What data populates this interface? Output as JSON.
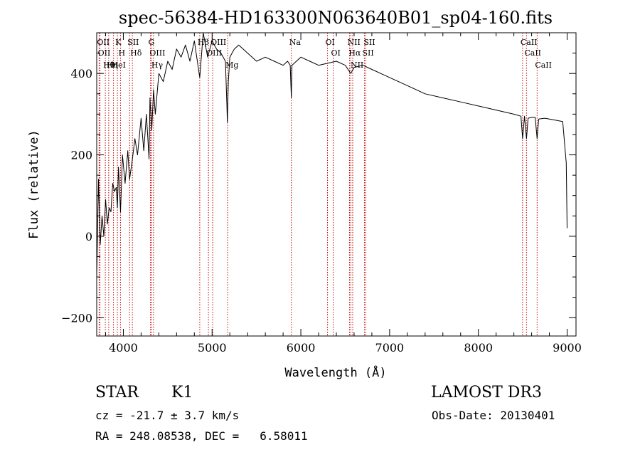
{
  "chart_data": {
    "type": "line",
    "title": "spec-56384-HD163300N063640B01_sp04-160.fits",
    "xlabel": "Wavelength (Å)",
    "ylabel": "Flux (relative)",
    "xlim": [
      3700,
      9100
    ],
    "ylim": [
      -245,
      500
    ],
    "xticks": [
      4000,
      5000,
      6000,
      7000,
      8000,
      9000
    ],
    "yticks": [
      -200,
      0,
      200,
      400
    ],
    "grid": false,
    "series": [
      {
        "name": "flux",
        "x": [
          3700,
          3720,
          3740,
          3760,
          3780,
          3800,
          3820,
          3840,
          3860,
          3880,
          3900,
          3920,
          3933,
          3945,
          3968,
          3990,
          4020,
          4050,
          4070,
          4102,
          4130,
          4160,
          4200,
          4230,
          4260,
          4290,
          4300,
          4320,
          4340,
          4360,
          4400,
          4450,
          4500,
          4550,
          4600,
          4650,
          4700,
          4750,
          4800,
          4861,
          4900,
          4950,
          5000,
          5050,
          5100,
          5150,
          5167,
          5172,
          5183,
          5200,
          5250,
          5300,
          5350,
          5400,
          5450,
          5500,
          5600,
          5700,
          5800,
          5850,
          5880,
          5893,
          5900,
          5950,
          6000,
          6100,
          6200,
          6300,
          6400,
          6500,
          6563,
          6600,
          6700,
          6800,
          6900,
          7000,
          7200,
          7400,
          7600,
          7800,
          8000,
          8200,
          8400,
          8480,
          8498,
          8520,
          8542,
          8560,
          8600,
          8640,
          8662,
          8680,
          8750,
          8850,
          8950,
          8990,
          9000
        ],
        "y": [
          -100,
          140,
          -20,
          50,
          0,
          90,
          30,
          70,
          60,
          130,
          110,
          120,
          70,
          170,
          60,
          200,
          130,
          210,
          140,
          190,
          240,
          200,
          290,
          210,
          300,
          190,
          340,
          260,
          360,
          300,
          400,
          380,
          430,
          410,
          460,
          440,
          470,
          430,
          480,
          390,
          500,
          440,
          480,
          460,
          450,
          430,
          320,
          280,
          380,
          440,
          460,
          470,
          460,
          450,
          440,
          430,
          440,
          430,
          420,
          430,
          420,
          340,
          420,
          430,
          440,
          430,
          420,
          425,
          430,
          420,
          400,
          415,
          420,
          410,
          400,
          390,
          370,
          350,
          340,
          330,
          320,
          310,
          300,
          295,
          240,
          295,
          240,
          290,
          292,
          292,
          240,
          288,
          290,
          286,
          282,
          180,
          20
        ]
      }
    ],
    "lines": [
      {
        "label": "Hθ",
        "x": 3797
      },
      {
        "label": "OII",
        "x": 3727
      },
      {
        "label": "OII",
        "x": 3737
      },
      {
        "label": "HeI",
        "x": 3889
      },
      {
        "label": "Hη",
        "x": 3835
      },
      {
        "label": "K",
        "x": 3933
      },
      {
        "label": "H",
        "x": 3968
      },
      {
        "label": "SII",
        "x": 4070
      },
      {
        "label": "Hδ",
        "x": 4102
      },
      {
        "label": "OIII",
        "x": 4320
      },
      {
        "label": "Hγ",
        "x": 4340
      },
      {
        "label": "G",
        "x": 4305
      },
      {
        "label": "Hβ",
        "x": 4861
      },
      {
        "label": "OIII",
        "x": 4959
      },
      {
        "label": "OIII",
        "x": 5007
      },
      {
        "label": "Mg",
        "x": 5175
      },
      {
        "label": "Na",
        "x": 5893
      },
      {
        "label": "OI",
        "x": 6300
      },
      {
        "label": "OI",
        "x": 6364
      },
      {
        "label": "Hα",
        "x": 6563
      },
      {
        "label": "NII",
        "x": 6548
      },
      {
        "label": "NII",
        "x": 6584
      },
      {
        "label": "SII",
        "x": 6716
      },
      {
        "label": "SII",
        "x": 6731
      },
      {
        "label": "CaII",
        "x": 8498
      },
      {
        "label": "CaII",
        "x": 8542
      },
      {
        "label": "CaII",
        "x": 8662
      }
    ]
  },
  "info": {
    "class": "STAR",
    "subclass": "K1",
    "survey": "LAMOST DR3",
    "cz": "cz = -21.7 ± 3.7 km/s",
    "obs_date": "Obs-Date: 20130401",
    "coords": "RA = 248.08538, DEC =   6.58011"
  },
  "colors": {
    "axis": "#000000",
    "spectrum": "#000000",
    "line_marker": "#c00000"
  }
}
